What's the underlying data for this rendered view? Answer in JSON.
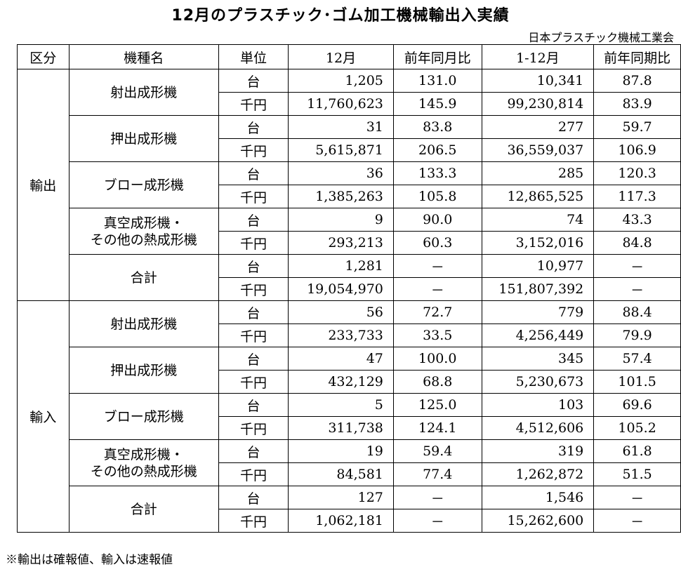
{
  "title": "12月のプラスチック･ゴム加工機械輸出入実績",
  "organization": "日本プラスチック機械工業会",
  "headers": {
    "category": "区分",
    "model": "機種名",
    "unit": "単位",
    "month": "12月",
    "month_yoy": "前年同月比",
    "period": "1-12月",
    "period_yoy": "前年同期比"
  },
  "sections": [
    {
      "name": "輸出",
      "machines": [
        {
          "name": [
            "射出成形機"
          ],
          "rows": [
            {
              "unit": "台",
              "month": "1,205",
              "month_yoy": "131.0",
              "period": "10,341",
              "period_yoy": "87.8"
            },
            {
              "unit": "千円",
              "month": "11,760,623",
              "month_yoy": "145.9",
              "period": "99,230,814",
              "period_yoy": "83.9"
            }
          ]
        },
        {
          "name": [
            "押出成形機"
          ],
          "rows": [
            {
              "unit": "台",
              "month": "31",
              "month_yoy": "83.8",
              "period": "277",
              "period_yoy": "59.7"
            },
            {
              "unit": "千円",
              "month": "5,615,871",
              "month_yoy": "206.5",
              "period": "36,559,037",
              "period_yoy": "106.9"
            }
          ]
        },
        {
          "name": [
            "ブロー成形機"
          ],
          "rows": [
            {
              "unit": "台",
              "month": "36",
              "month_yoy": "133.3",
              "period": "285",
              "period_yoy": "120.3"
            },
            {
              "unit": "千円",
              "month": "1,385,263",
              "month_yoy": "105.8",
              "period": "12,865,525",
              "period_yoy": "117.3"
            }
          ]
        },
        {
          "name": [
            "真空成形機・",
            "その他の熱成形機"
          ],
          "rows": [
            {
              "unit": "台",
              "month": "9",
              "month_yoy": "90.0",
              "period": "74",
              "period_yoy": "43.3"
            },
            {
              "unit": "千円",
              "month": "293,213",
              "month_yoy": "60.3",
              "period": "3,152,016",
              "period_yoy": "84.8"
            }
          ]
        },
        {
          "name": [
            "合計"
          ],
          "rows": [
            {
              "unit": "台",
              "month": "1,281",
              "month_yoy": "－",
              "period": "10,977",
              "period_yoy": "－"
            },
            {
              "unit": "千円",
              "month": "19,054,970",
              "month_yoy": "－",
              "period": "151,807,392",
              "period_yoy": "－"
            }
          ]
        }
      ]
    },
    {
      "name": "輸入",
      "machines": [
        {
          "name": [
            "射出成形機"
          ],
          "rows": [
            {
              "unit": "台",
              "month": "56",
              "month_yoy": "72.7",
              "period": "779",
              "period_yoy": "88.4"
            },
            {
              "unit": "千円",
              "month": "233,733",
              "month_yoy": "33.5",
              "period": "4,256,449",
              "period_yoy": "79.9"
            }
          ]
        },
        {
          "name": [
            "押出成形機"
          ],
          "rows": [
            {
              "unit": "台",
              "month": "47",
              "month_yoy": "100.0",
              "period": "345",
              "period_yoy": "57.4"
            },
            {
              "unit": "千円",
              "month": "432,129",
              "month_yoy": "68.8",
              "period": "5,230,673",
              "period_yoy": "101.5"
            }
          ]
        },
        {
          "name": [
            "ブロー成形機"
          ],
          "rows": [
            {
              "unit": "台",
              "month": "5",
              "month_yoy": "125.0",
              "period": "103",
              "period_yoy": "69.6"
            },
            {
              "unit": "千円",
              "month": "311,738",
              "month_yoy": "124.1",
              "period": "4,512,606",
              "period_yoy": "105.2"
            }
          ]
        },
        {
          "name": [
            "真空成形機・",
            "その他の熱成形機"
          ],
          "rows": [
            {
              "unit": "台",
              "month": "19",
              "month_yoy": "59.4",
              "period": "319",
              "period_yoy": "61.8"
            },
            {
              "unit": "千円",
              "month": "84,581",
              "month_yoy": "77.4",
              "period": "1,262,872",
              "period_yoy": "51.5"
            }
          ]
        },
        {
          "name": [
            "合計"
          ],
          "rows": [
            {
              "unit": "台",
              "month": "127",
              "month_yoy": "－",
              "period": "1,546",
              "period_yoy": "－"
            },
            {
              "unit": "千円",
              "month": "1,062,181",
              "month_yoy": "－",
              "period": "15,262,600",
              "period_yoy": "－"
            }
          ]
        }
      ]
    }
  ],
  "note": "※輸出は確報値、輸入は速報値"
}
